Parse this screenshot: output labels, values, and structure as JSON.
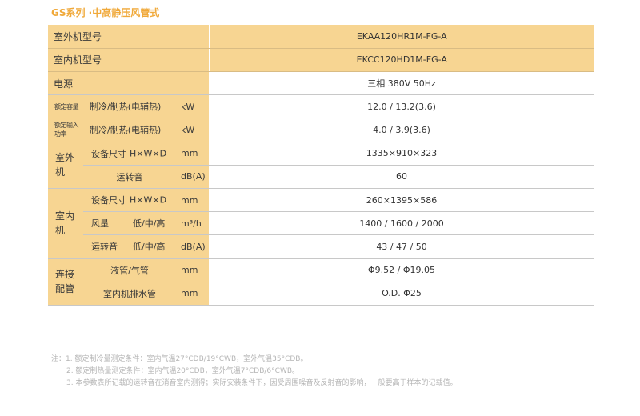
{
  "title": "GS系列 ·中高静压风管式",
  "table": {
    "outdoor_model": {
      "label": "室外机型号",
      "value": "EKAA120HR1M-FG-A"
    },
    "indoor_model": {
      "label": "室内机型号",
      "value": "EKCC120HD1M-FG-A"
    },
    "power": {
      "label": "电源",
      "value": "三相 380V 50Hz"
    },
    "capacity": {
      "label": "额定容量",
      "sub": "制冷/制热(电辅热)",
      "unit": "kW",
      "value": "12.0 / 13.2(3.6)"
    },
    "input_power": {
      "label": "额定输入功率",
      "sub": "制冷/制热(电辅热)",
      "unit": "kW",
      "value": "4.0 / 3.9(3.6)"
    },
    "outdoor": {
      "label": "室外机",
      "size": {
        "sub_a": "设备尺寸",
        "sub_b": "H×W×D",
        "unit": "mm",
        "value": "1335×910×323"
      },
      "noise": {
        "sub": "运转音",
        "unit": "dB(A)",
        "value": "60"
      }
    },
    "indoor": {
      "label": "室内机",
      "size": {
        "sub_a": "设备尺寸",
        "sub_b": "H×W×D",
        "unit": "mm",
        "value": "260×1395×586"
      },
      "airflow": {
        "sub_a": "风量",
        "sub_b": "低/中/高",
        "unit": "m³/h",
        "value": "1400 / 1600 / 2000"
      },
      "noise": {
        "sub_a": "运转音",
        "sub_b": "低/中/高",
        "unit": "dB(A)",
        "value": "43 / 47 / 50"
      }
    },
    "piping": {
      "label_line1": "连接",
      "label_line2": "配管",
      "liquid_gas": {
        "sub": "液管/气管",
        "unit": "mm",
        "value": "Φ9.52 / Φ19.05"
      },
      "drain": {
        "sub": "室内机排水管",
        "unit": "mm",
        "value": "O.D. Φ25"
      }
    }
  },
  "notes": [
    "注：1. 额定制冷量测定条件：室内气温27°CDB/19°CWB，室外气温35°CDB。",
    "2. 额定制热量测定条件：室内气温20°CDB，室外气温7°CDB/6°CWB。",
    "3. 本参数表所记载的运转音在消音室内测得；实际安装条件下，因受周围噪音及反射音的影响，一般要高于样本的记载值。"
  ]
}
